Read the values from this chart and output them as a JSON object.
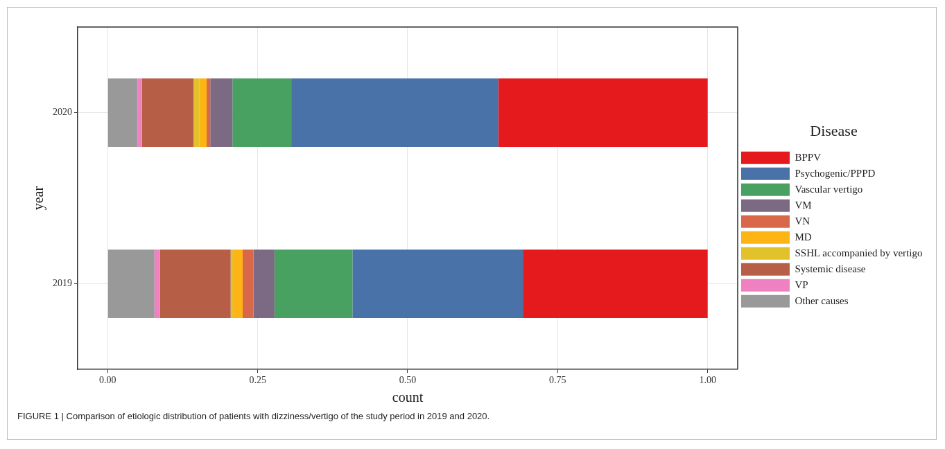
{
  "chart_data": {
    "type": "bar",
    "orientation": "horizontal",
    "stacked": true,
    "xlabel": "count",
    "ylabel": "year",
    "legend_title": "Disease",
    "legend": "right",
    "grid": true,
    "categories": [
      "2020",
      "2019"
    ],
    "xlim": [
      -0.05,
      1.05
    ],
    "xticks": [
      {
        "value": 0,
        "label": "0.00"
      },
      {
        "value": 0.25,
        "label": "0.25"
      },
      {
        "value": 0.5,
        "label": "0.50"
      },
      {
        "value": 0.75,
        "label": "0.75"
      },
      {
        "value": 1,
        "label": "1.00"
      }
    ],
    "series": [
      {
        "name": "Other causes",
        "color": "#999999",
        "values": [
          0.05,
          0.078
        ]
      },
      {
        "name": "VP",
        "color": "#f081c0",
        "values": [
          0.007,
          0.009
        ]
      },
      {
        "name": "Systemic disease",
        "color": "#b65e46",
        "values": [
          0.086,
          0.118
        ]
      },
      {
        "name": "SSHL accompanied by vertigo",
        "color": "#e2c22a",
        "values": [
          0.01,
          0.005
        ]
      },
      {
        "name": "MD",
        "color": "#fdb515",
        "values": [
          0.012,
          0.015
        ]
      },
      {
        "name": "VN",
        "color": "#d9674a",
        "values": [
          0.006,
          0.018
        ]
      },
      {
        "name": "VM",
        "color": "#7c6a84",
        "values": [
          0.037,
          0.035
        ]
      },
      {
        "name": "Vascular vertigo",
        "color": "#48a160",
        "values": [
          0.098,
          0.13
        ]
      },
      {
        "name": "Psychogenic/PPPD",
        "color": "#4872a8",
        "values": [
          0.345,
          0.284
        ]
      },
      {
        "name": "BPPV",
        "color": "#e41a1c",
        "values": [
          0.349,
          0.308
        ]
      }
    ],
    "annotations": [
      "FIGURE 1 | Comparison of etiologic distribution of patients with dizziness/vertigo of the study period in 2019 and 2020."
    ]
  }
}
